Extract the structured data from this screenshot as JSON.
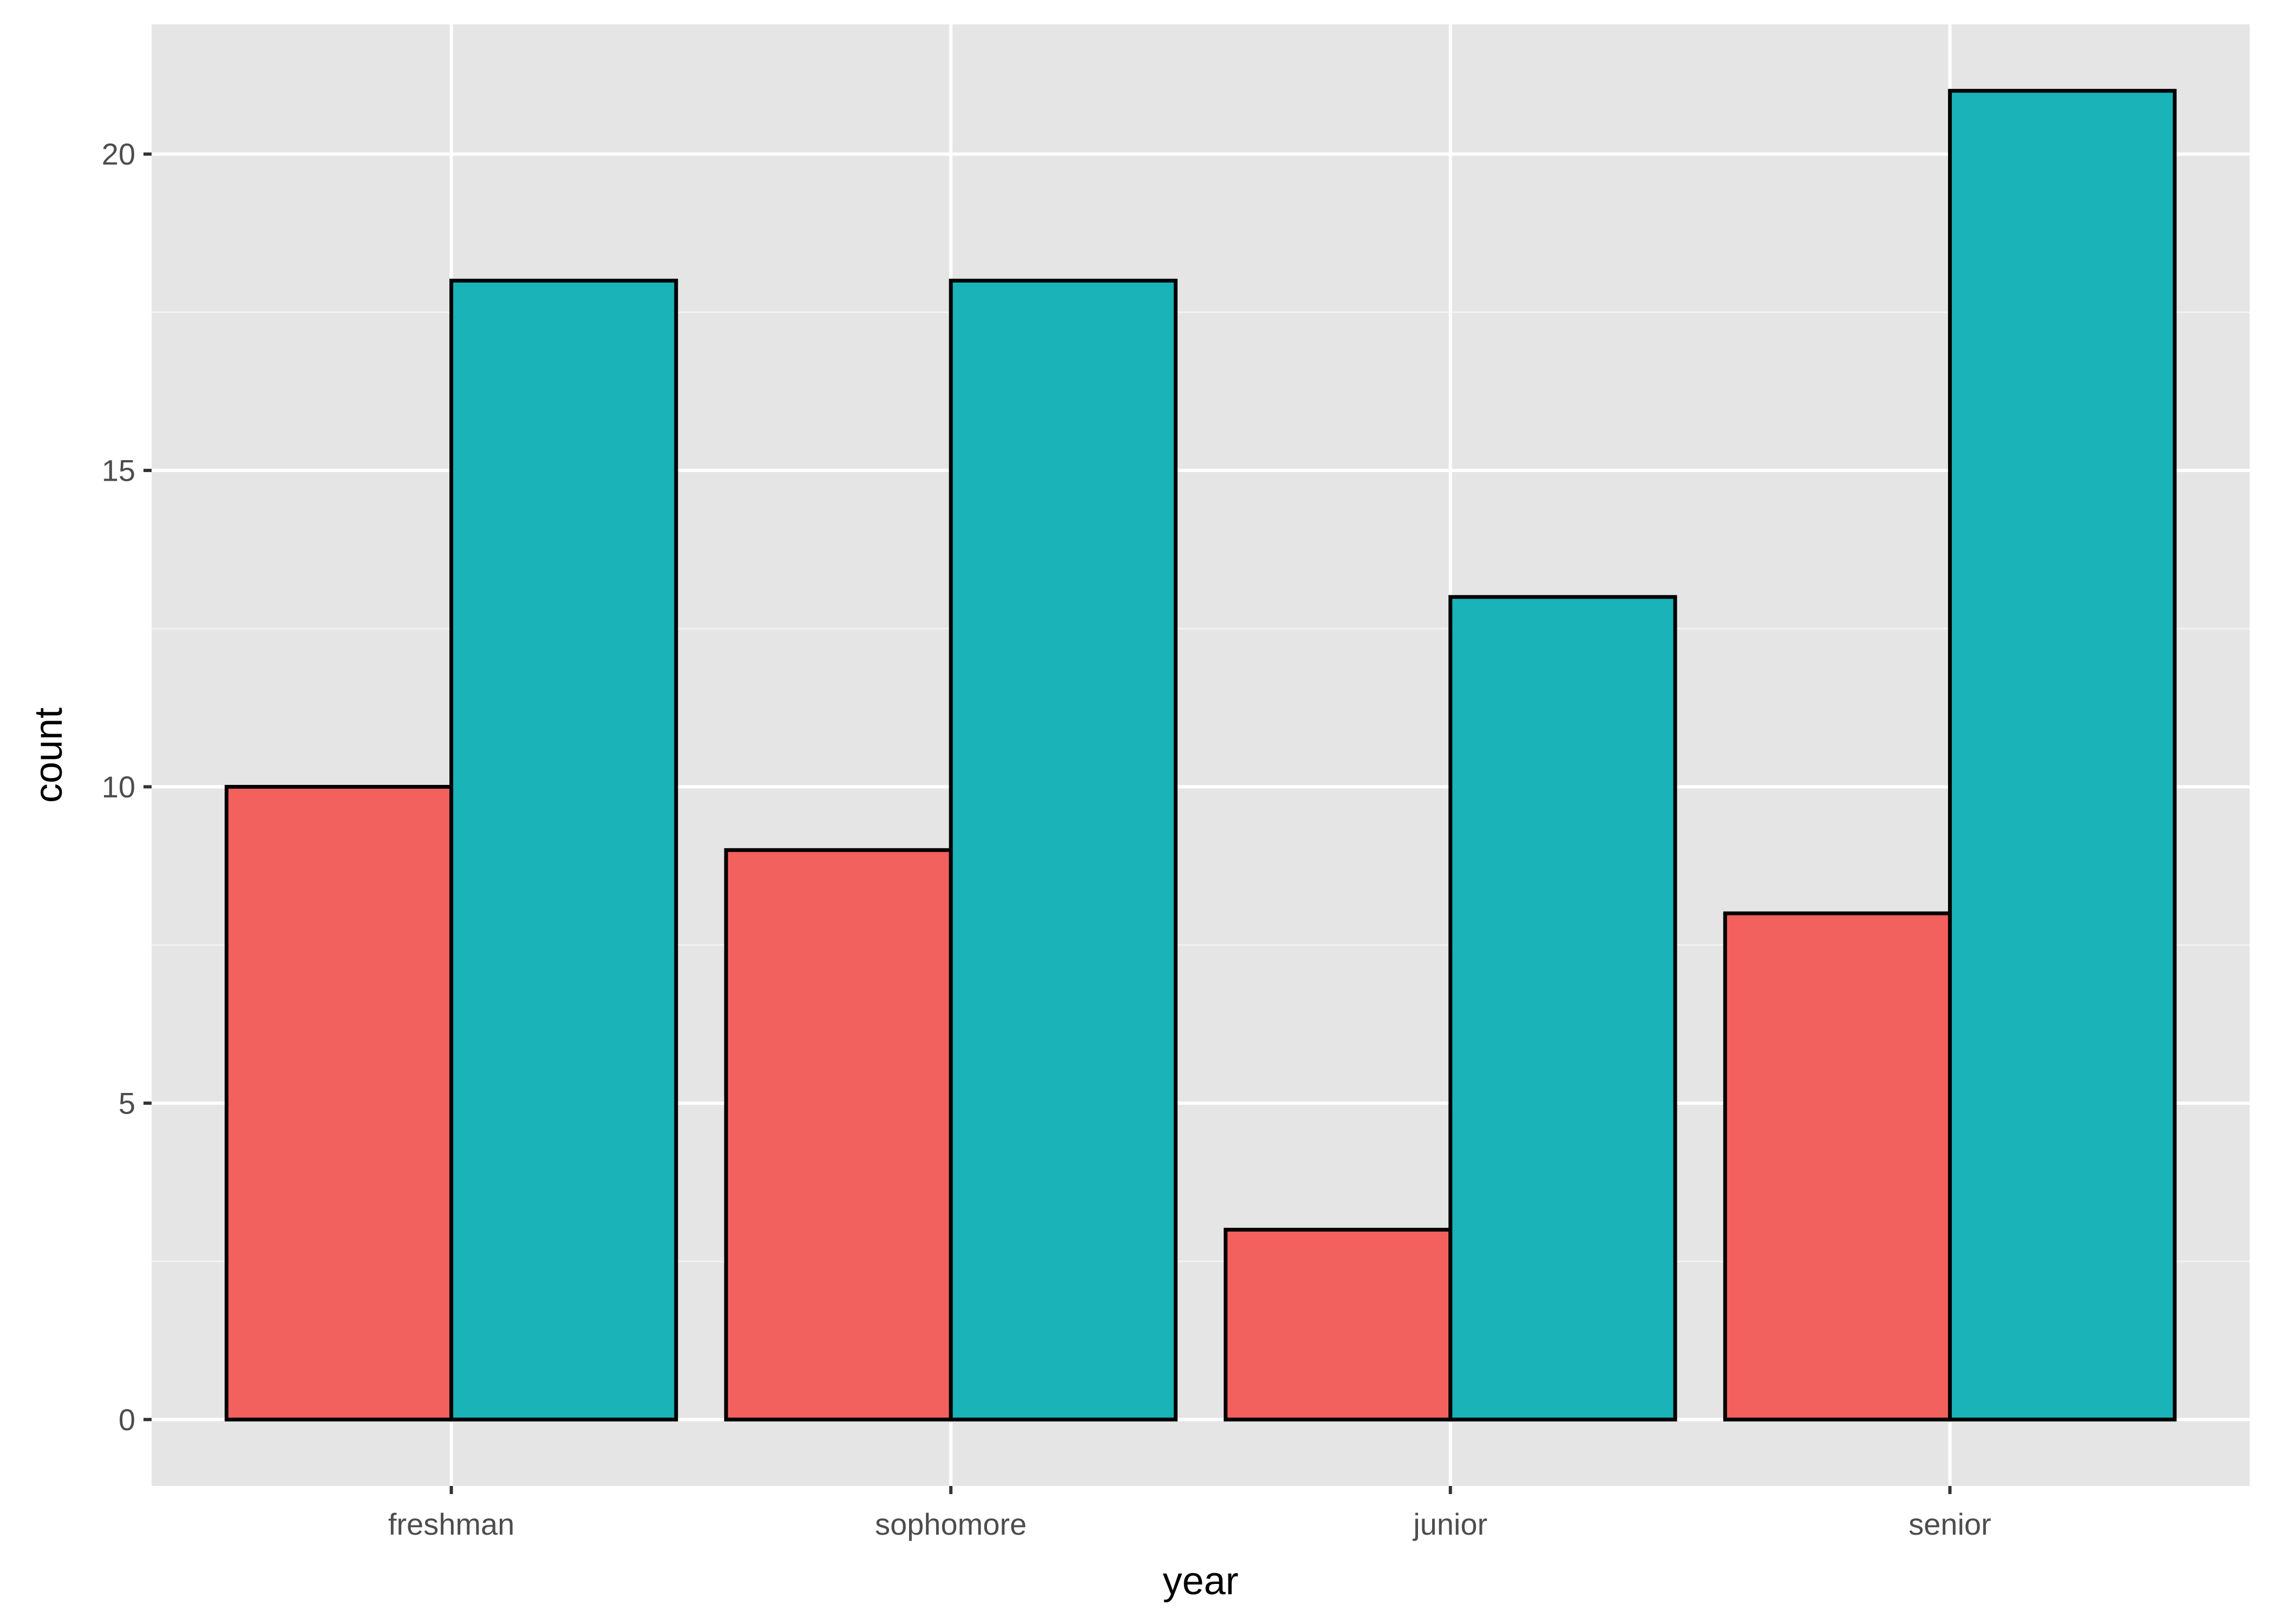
{
  "chart_data": {
    "type": "bar",
    "categories": [
      "freshman",
      "sophomore",
      "junior",
      "senior"
    ],
    "series": [
      {
        "values": [
          10,
          9,
          3,
          8
        ],
        "color": "#F2615D"
      },
      {
        "values": [
          18,
          18,
          13,
          21
        ],
        "color": "#19B3B8"
      }
    ],
    "xlabel": "year",
    "ylabel": "count",
    "ylim": [
      -1.05,
      22.05
    ],
    "yticks": [
      0,
      5,
      10,
      15,
      20
    ],
    "grid": true,
    "colors": {
      "panel_background": "#E5E5E5",
      "grid_major": "#FFFFFF",
      "grid_minor": "#F2F2F2",
      "bar_outline": "#000000",
      "tick_text": "#4D4D4D",
      "tick_mark": "#333333"
    }
  }
}
